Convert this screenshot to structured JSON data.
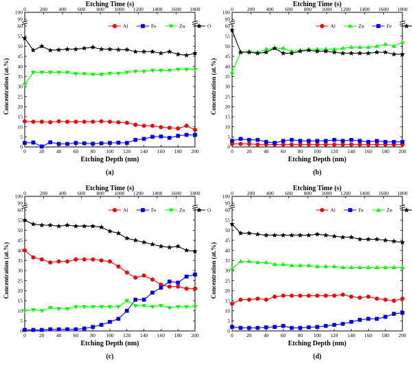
{
  "figure": {
    "colors": {
      "Al": "#ff0000",
      "Fe": "#0000ff",
      "Zn": "#00ff00",
      "O": "#000000"
    }
  },
  "chart_data": [
    {
      "type": "line",
      "panel_label": "(a)",
      "title_top": "Etching Time (s)",
      "xlabel": "Etching Depth (nm)",
      "ylabel": "Concentration (at.%)",
      "xlim": [
        0,
        200
      ],
      "ylim": [
        0,
        60
      ],
      "ylim_break": [
        99,
        100
      ],
      "x_ticks": [
        "0",
        "20",
        "40",
        "60",
        "80",
        "100",
        "120",
        "140",
        "160",
        "180",
        "200"
      ],
      "y_ticks": [
        "0",
        "5",
        "10",
        "15",
        "20",
        "25",
        "30",
        "35",
        "40",
        "45",
        "50",
        "55",
        "60"
      ],
      "top_ticks": [
        "0",
        "200",
        "400",
        "600",
        "800",
        "1000",
        "1200",
        "1400",
        "1600",
        "1800"
      ],
      "legend": [
        "Al",
        "Fe",
        "Zn",
        "O"
      ],
      "x": [
        0,
        10,
        20,
        30,
        40,
        50,
        60,
        70,
        80,
        90,
        100,
        110,
        120,
        130,
        140,
        150,
        160,
        170,
        180,
        190,
        200
      ],
      "series": [
        {
          "name": "Al",
          "marker": "circle",
          "values": [
            12.7,
            12.5,
            12.5,
            12.3,
            12.7,
            12.5,
            12.5,
            12.5,
            12.5,
            12.7,
            12.5,
            12.2,
            12.0,
            11.0,
            10.5,
            10.5,
            9.8,
            9.5,
            9.2,
            10.5,
            8.5
          ]
        },
        {
          "name": "Fe",
          "marker": "square",
          "values": [
            2,
            2.2,
            0.2,
            2.3,
            1.5,
            1.5,
            2,
            1.8,
            1.6,
            1.8,
            2,
            2.1,
            2,
            3.5,
            4,
            5,
            5.2,
            4.5,
            5.5,
            6,
            6
          ]
        },
        {
          "name": "Zn",
          "marker": "triangle-down",
          "values": [
            31,
            37,
            37,
            37,
            37,
            37,
            36.3,
            36.3,
            36,
            36,
            36.5,
            36.5,
            37,
            37.5,
            37.5,
            38,
            38,
            38,
            38.5,
            38.5,
            38.5
          ]
        },
        {
          "name": "O",
          "marker": "star",
          "values": [
            54,
            48,
            50,
            48,
            48.2,
            48.5,
            48.5,
            49,
            49.5,
            48.5,
            48.5,
            48.3,
            48.3,
            47.3,
            47.3,
            47.3,
            46.5,
            47.3,
            46,
            45.5,
            46.5
          ]
        }
      ]
    },
    {
      "type": "line",
      "panel_label": "(b)",
      "title_top": "Etching Time (s)",
      "xlabel": "Etching Depth (nm)",
      "ylabel": "Concentration (at.%)",
      "xlim": [
        0,
        200
      ],
      "ylim": [
        0,
        60
      ],
      "ylim_break": [
        99,
        100
      ],
      "x_ticks": [
        "0",
        "20",
        "40",
        "60",
        "80",
        "100",
        "120",
        "140",
        "160",
        "180",
        "200"
      ],
      "y_ticks": [
        "0",
        "5",
        "10",
        "15",
        "20",
        "25",
        "30",
        "35",
        "40",
        "45",
        "50",
        "55",
        "60"
      ],
      "top_ticks": [
        "0",
        "200",
        "400",
        "600",
        "800",
        "1000",
        "1200",
        "1400",
        "1600",
        "1800"
      ],
      "legend": [
        "Al",
        "Zn",
        "Fe",
        "O"
      ],
      "x": [
        0,
        10,
        20,
        30,
        40,
        50,
        60,
        70,
        80,
        90,
        100,
        110,
        120,
        130,
        140,
        150,
        160,
        170,
        180,
        190,
        200
      ],
      "series": [
        {
          "name": "Al",
          "marker": "circle",
          "values": [
            1.5,
            1.5,
            1.5,
            1.2,
            1.2,
            1.2,
            1.2,
            1.2,
            1.2,
            1.2,
            1.2,
            1.2,
            1.2,
            1.2,
            1.2,
            1.2,
            1.2,
            1.2,
            1.2,
            1.2,
            1.2
          ]
        },
        {
          "name": "Zn",
          "marker": "triangle-up",
          "values": [
            37,
            47,
            47.5,
            47,
            48.5,
            49,
            49,
            47.5,
            48,
            48.5,
            48.5,
            48.5,
            48.5,
            49,
            49.5,
            49.5,
            49.5,
            50,
            51,
            50,
            52
          ]
        },
        {
          "name": "Fe",
          "marker": "square",
          "values": [
            3,
            4,
            3.5,
            3.5,
            2.5,
            2,
            3,
            3.5,
            3,
            3,
            3,
            3,
            3.5,
            3,
            3.5,
            3,
            2.5,
            3,
            2.5,
            2.5,
            2.5
          ]
        },
        {
          "name": "O",
          "marker": "star",
          "values": [
            58,
            47,
            47,
            46.5,
            47,
            49,
            46.5,
            46.5,
            47.5,
            48,
            47.5,
            47.5,
            47,
            46.5,
            46.5,
            46.5,
            46.5,
            47,
            47,
            46,
            46
          ]
        }
      ]
    },
    {
      "type": "line",
      "panel_label": "(c)",
      "title_top": "Etching Time (s)",
      "xlabel": "Etching Depth (nm)",
      "ylabel": "Concentration (at.%)",
      "xlim": [
        0,
        200
      ],
      "ylim": [
        0,
        60
      ],
      "ylim_break": [
        99,
        100
      ],
      "x_ticks": [
        "0",
        "20",
        "40",
        "60",
        "80",
        "100",
        "120",
        "140",
        "160",
        "180",
        "200"
      ],
      "y_ticks": [
        "0",
        "5",
        "10",
        "15",
        "20",
        "25",
        "30",
        "35",
        "40",
        "45",
        "50",
        "55",
        "60"
      ],
      "top_ticks": [
        "0",
        "200",
        "400",
        "600",
        "800",
        "1000",
        "1200",
        "1400",
        "1600",
        "1800"
      ],
      "legend": [
        "Al",
        "Fe",
        "Zn",
        "O"
      ],
      "x": [
        0,
        10,
        20,
        30,
        40,
        50,
        60,
        70,
        80,
        90,
        100,
        110,
        120,
        130,
        140,
        150,
        160,
        170,
        180,
        190,
        200
      ],
      "series": [
        {
          "name": "Al",
          "marker": "circle",
          "values": [
            40,
            36.5,
            35.5,
            34,
            34.5,
            34.5,
            35.5,
            35.5,
            35.5,
            35,
            34.5,
            32,
            29,
            26.5,
            27.5,
            25.5,
            23,
            22,
            22,
            21,
            21
          ]
        },
        {
          "name": "Fe",
          "marker": "square",
          "values": [
            0.5,
            0.5,
            0.5,
            0.8,
            0.8,
            0.8,
            0.8,
            1.2,
            2,
            3,
            4.5,
            6,
            10,
            15.5,
            15.5,
            19,
            21.5,
            24.5,
            24,
            27,
            28
          ]
        },
        {
          "name": "Zn",
          "marker": "triangle-down",
          "values": [
            10,
            10.5,
            10,
            11.5,
            11,
            11,
            12,
            12,
            12,
            12,
            12,
            12,
            15,
            12.5,
            12.5,
            12,
            12.5,
            11.5,
            12,
            12,
            12
          ]
        },
        {
          "name": "O",
          "marker": "star",
          "values": [
            55,
            53,
            52.5,
            52.5,
            52,
            52.5,
            52,
            52,
            52,
            51.5,
            49.5,
            48.5,
            46,
            45,
            44,
            43,
            42,
            41.5,
            42,
            40,
            39.5
          ]
        }
      ]
    },
    {
      "type": "line",
      "panel_label": "(d)",
      "title_top": "Etching Time (s)",
      "xlabel": "Etching Depth (nm)",
      "ylabel": "Concentration (at.%)",
      "xlim": [
        0,
        200
      ],
      "ylim": [
        0,
        60
      ],
      "ylim_break": [
        99,
        100
      ],
      "x_ticks": [
        "0",
        "20",
        "40",
        "60",
        "80",
        "100",
        "120",
        "140",
        "160",
        "180",
        "200"
      ],
      "y_ticks": [
        "0",
        "5",
        "10",
        "15",
        "20",
        "25",
        "30",
        "35",
        "40",
        "45",
        "50",
        "55",
        "60"
      ],
      "top_ticks": [
        "0",
        "200",
        "400",
        "600",
        "800",
        "1000",
        "1200",
        "1400",
        "1600",
        "1800"
      ],
      "legend": [
        "Al",
        "Fe",
        "Zn",
        "O"
      ],
      "x": [
        0,
        10,
        20,
        30,
        40,
        50,
        60,
        70,
        80,
        90,
        100,
        110,
        120,
        130,
        140,
        150,
        160,
        170,
        180,
        190,
        200
      ],
      "series": [
        {
          "name": "Al",
          "marker": "circle",
          "values": [
            13.5,
            15.5,
            15.5,
            16,
            15.5,
            17,
            17.5,
            17.5,
            17.5,
            17.5,
            17.5,
            17.5,
            17.5,
            18,
            17,
            16.5,
            17,
            16,
            15.5,
            15,
            16
          ]
        },
        {
          "name": "Fe",
          "marker": "square",
          "values": [
            2,
            1.5,
            1.5,
            1.5,
            1.8,
            2,
            2.5,
            1.5,
            1.5,
            1.8,
            2,
            2.5,
            3,
            3.5,
            4.5,
            5.5,
            6,
            6,
            7,
            8.5,
            9
          ]
        },
        {
          "name": "Zn",
          "marker": "triangle-up",
          "values": [
            31,
            34.5,
            34.5,
            34,
            34,
            33,
            33,
            32.5,
            32.5,
            32.5,
            32,
            32,
            32,
            31.5,
            31.5,
            31.5,
            31.5,
            31.5,
            31.5,
            31.5,
            31.5
          ]
        },
        {
          "name": "O",
          "marker": "star",
          "values": [
            53,
            48.5,
            48.5,
            48,
            47.5,
            47.5,
            47.5,
            47.5,
            47.5,
            47.5,
            48,
            47.5,
            47,
            46.5,
            46.5,
            45.5,
            45.5,
            45.5,
            45,
            44.5,
            44
          ]
        }
      ]
    }
  ]
}
